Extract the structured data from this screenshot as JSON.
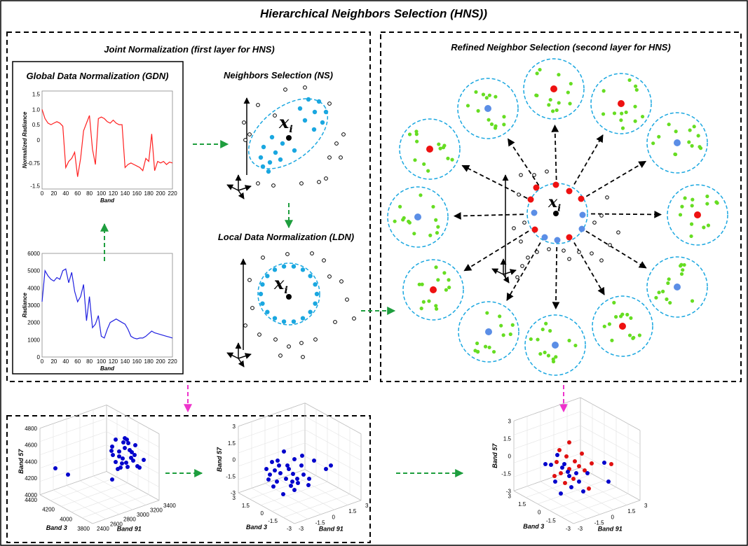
{
  "title": "Hierarchical Neighbors Selection (HNS))",
  "panels": {
    "joint": "Joint Normalization (first layer for HNS)",
    "refined": "Refined Neighbor Selection (second layer for HNS)",
    "gdn": "Global Data Normalization (GDN)",
    "ns": "Neighbors Selection (NS)",
    "ldn": "Local Data Normalization (LDN)"
  },
  "xi": {
    "symbol": "x",
    "subscript": "i"
  },
  "colors": {
    "red_line": "#ff2020",
    "blue_line": "#2020e0",
    "cyan": "#1aa7e0",
    "green_point": "#66dd22",
    "red_point": "#ee1111",
    "blue_point": "#5b8ee6",
    "green_arrow": "#1e9e3e",
    "pink_arrow": "#ee33cc",
    "scatter_blue": "#0000cc"
  },
  "chart_data": [
    {
      "type": "line",
      "xlabel": "Band",
      "ylabel": "Normalized Radiance",
      "xlim": [
        0,
        220
      ],
      "ylim": [
        -1.6,
        1.6
      ],
      "xticks": [
        "0",
        "20",
        "40",
        "60",
        "80",
        "100",
        "120",
        "140",
        "160",
        "180",
        "200",
        "220"
      ],
      "yticks": [
        "1.5",
        "1.0",
        "0.5",
        "0",
        "-0.75",
        "-1.5"
      ],
      "x": [
        0,
        5,
        10,
        15,
        20,
        25,
        30,
        35,
        40,
        45,
        50,
        55,
        60,
        65,
        70,
        75,
        80,
        85,
        90,
        95,
        100,
        105,
        110,
        115,
        120,
        125,
        130,
        135,
        140,
        145,
        150,
        155,
        160,
        165,
        170,
        175,
        180,
        185,
        190,
        195,
        200,
        205,
        210,
        215,
        220
      ],
      "values": [
        1.0,
        0.7,
        0.55,
        0.5,
        0.55,
        0.6,
        0.55,
        0.45,
        -0.9,
        -0.7,
        -0.6,
        -0.4,
        -1.2,
        -0.6,
        0.3,
        0.55,
        0.8,
        -0.3,
        -0.8,
        0.7,
        0.75,
        0.7,
        0.6,
        0.55,
        0.65,
        0.55,
        0.5,
        0.5,
        -0.9,
        -0.8,
        -0.75,
        -0.8,
        -0.85,
        -0.9,
        -1.0,
        -0.6,
        -0.7,
        0.2,
        -1.0,
        -0.7,
        -0.75,
        -0.7,
        -0.8,
        -0.72,
        -0.75
      ]
    },
    {
      "type": "line",
      "xlabel": "Band",
      "ylabel": "Radiance",
      "xlim": [
        0,
        220
      ],
      "ylim": [
        0,
        6000
      ],
      "xticks": [
        "0",
        "20",
        "40",
        "60",
        "80",
        "100",
        "120",
        "140",
        "160",
        "180",
        "200",
        "220"
      ],
      "yticks": [
        "6000",
        "5000",
        "4000",
        "3000",
        "2000",
        "1000",
        "0"
      ],
      "x": [
        0,
        5,
        10,
        15,
        20,
        25,
        30,
        35,
        40,
        45,
        50,
        55,
        60,
        65,
        70,
        75,
        80,
        85,
        90,
        95,
        100,
        105,
        110,
        115,
        120,
        125,
        130,
        135,
        140,
        145,
        150,
        155,
        160,
        165,
        170,
        175,
        180,
        185,
        190,
        195,
        200,
        205,
        210,
        215,
        220
      ],
      "values": [
        3200,
        5000,
        4700,
        4500,
        4400,
        4600,
        4500,
        5000,
        5100,
        4300,
        4900,
        3800,
        3200,
        3500,
        4200,
        2100,
        3500,
        1700,
        1900,
        2400,
        1200,
        1100,
        1600,
        2000,
        2100,
        2200,
        2100,
        2000,
        1900,
        1600,
        1200,
        1100,
        1050,
        1100,
        1100,
        1200,
        1350,
        1500,
        1400,
        1350,
        1300,
        1250,
        1200,
        1150,
        1100
      ]
    },
    {
      "type": "scatter",
      "title": "",
      "xlabel": "Band 91",
      "ylabel": "Band 57",
      "zlabel": "Band 3",
      "x_ticks": [
        "2400",
        "2600",
        "2800",
        "3000",
        "3200",
        "3400"
      ],
      "y_ticks": [
        "4000",
        "4200",
        "4400",
        "4600",
        "4800"
      ],
      "z_ticks": [
        "3800",
        "4000",
        "4200",
        "4400"
      ],
      "point_count": 30
    },
    {
      "type": "scatter",
      "xlabel": "Band 91",
      "ylabel": "Band 57",
      "zlabel": "Band 3",
      "x_ticks": [
        "-3",
        "-1.5",
        "0",
        "1.5",
        "3"
      ],
      "y_ticks": [
        "-3",
        "-1.5",
        "0",
        "1.5",
        "3"
      ],
      "z_ticks": [
        "-3",
        "-1.5",
        "0",
        "1.5",
        "3"
      ],
      "point_count": 30
    },
    {
      "type": "scatter",
      "xlabel": "Band 91",
      "ylabel": "Band 57",
      "zlabel": "Band 3",
      "x_ticks": [
        "-3",
        "-1.5",
        "0",
        "1.5",
        "3"
      ],
      "y_ticks": [
        "-3",
        "-1.5",
        "0",
        "1.5",
        "3"
      ],
      "z_ticks": [
        "-3",
        "-1.5",
        "0",
        "1.5",
        "3"
      ],
      "series": [
        {
          "color": "red",
          "count": 16
        },
        {
          "color": "blue",
          "count": 16
        }
      ]
    }
  ]
}
